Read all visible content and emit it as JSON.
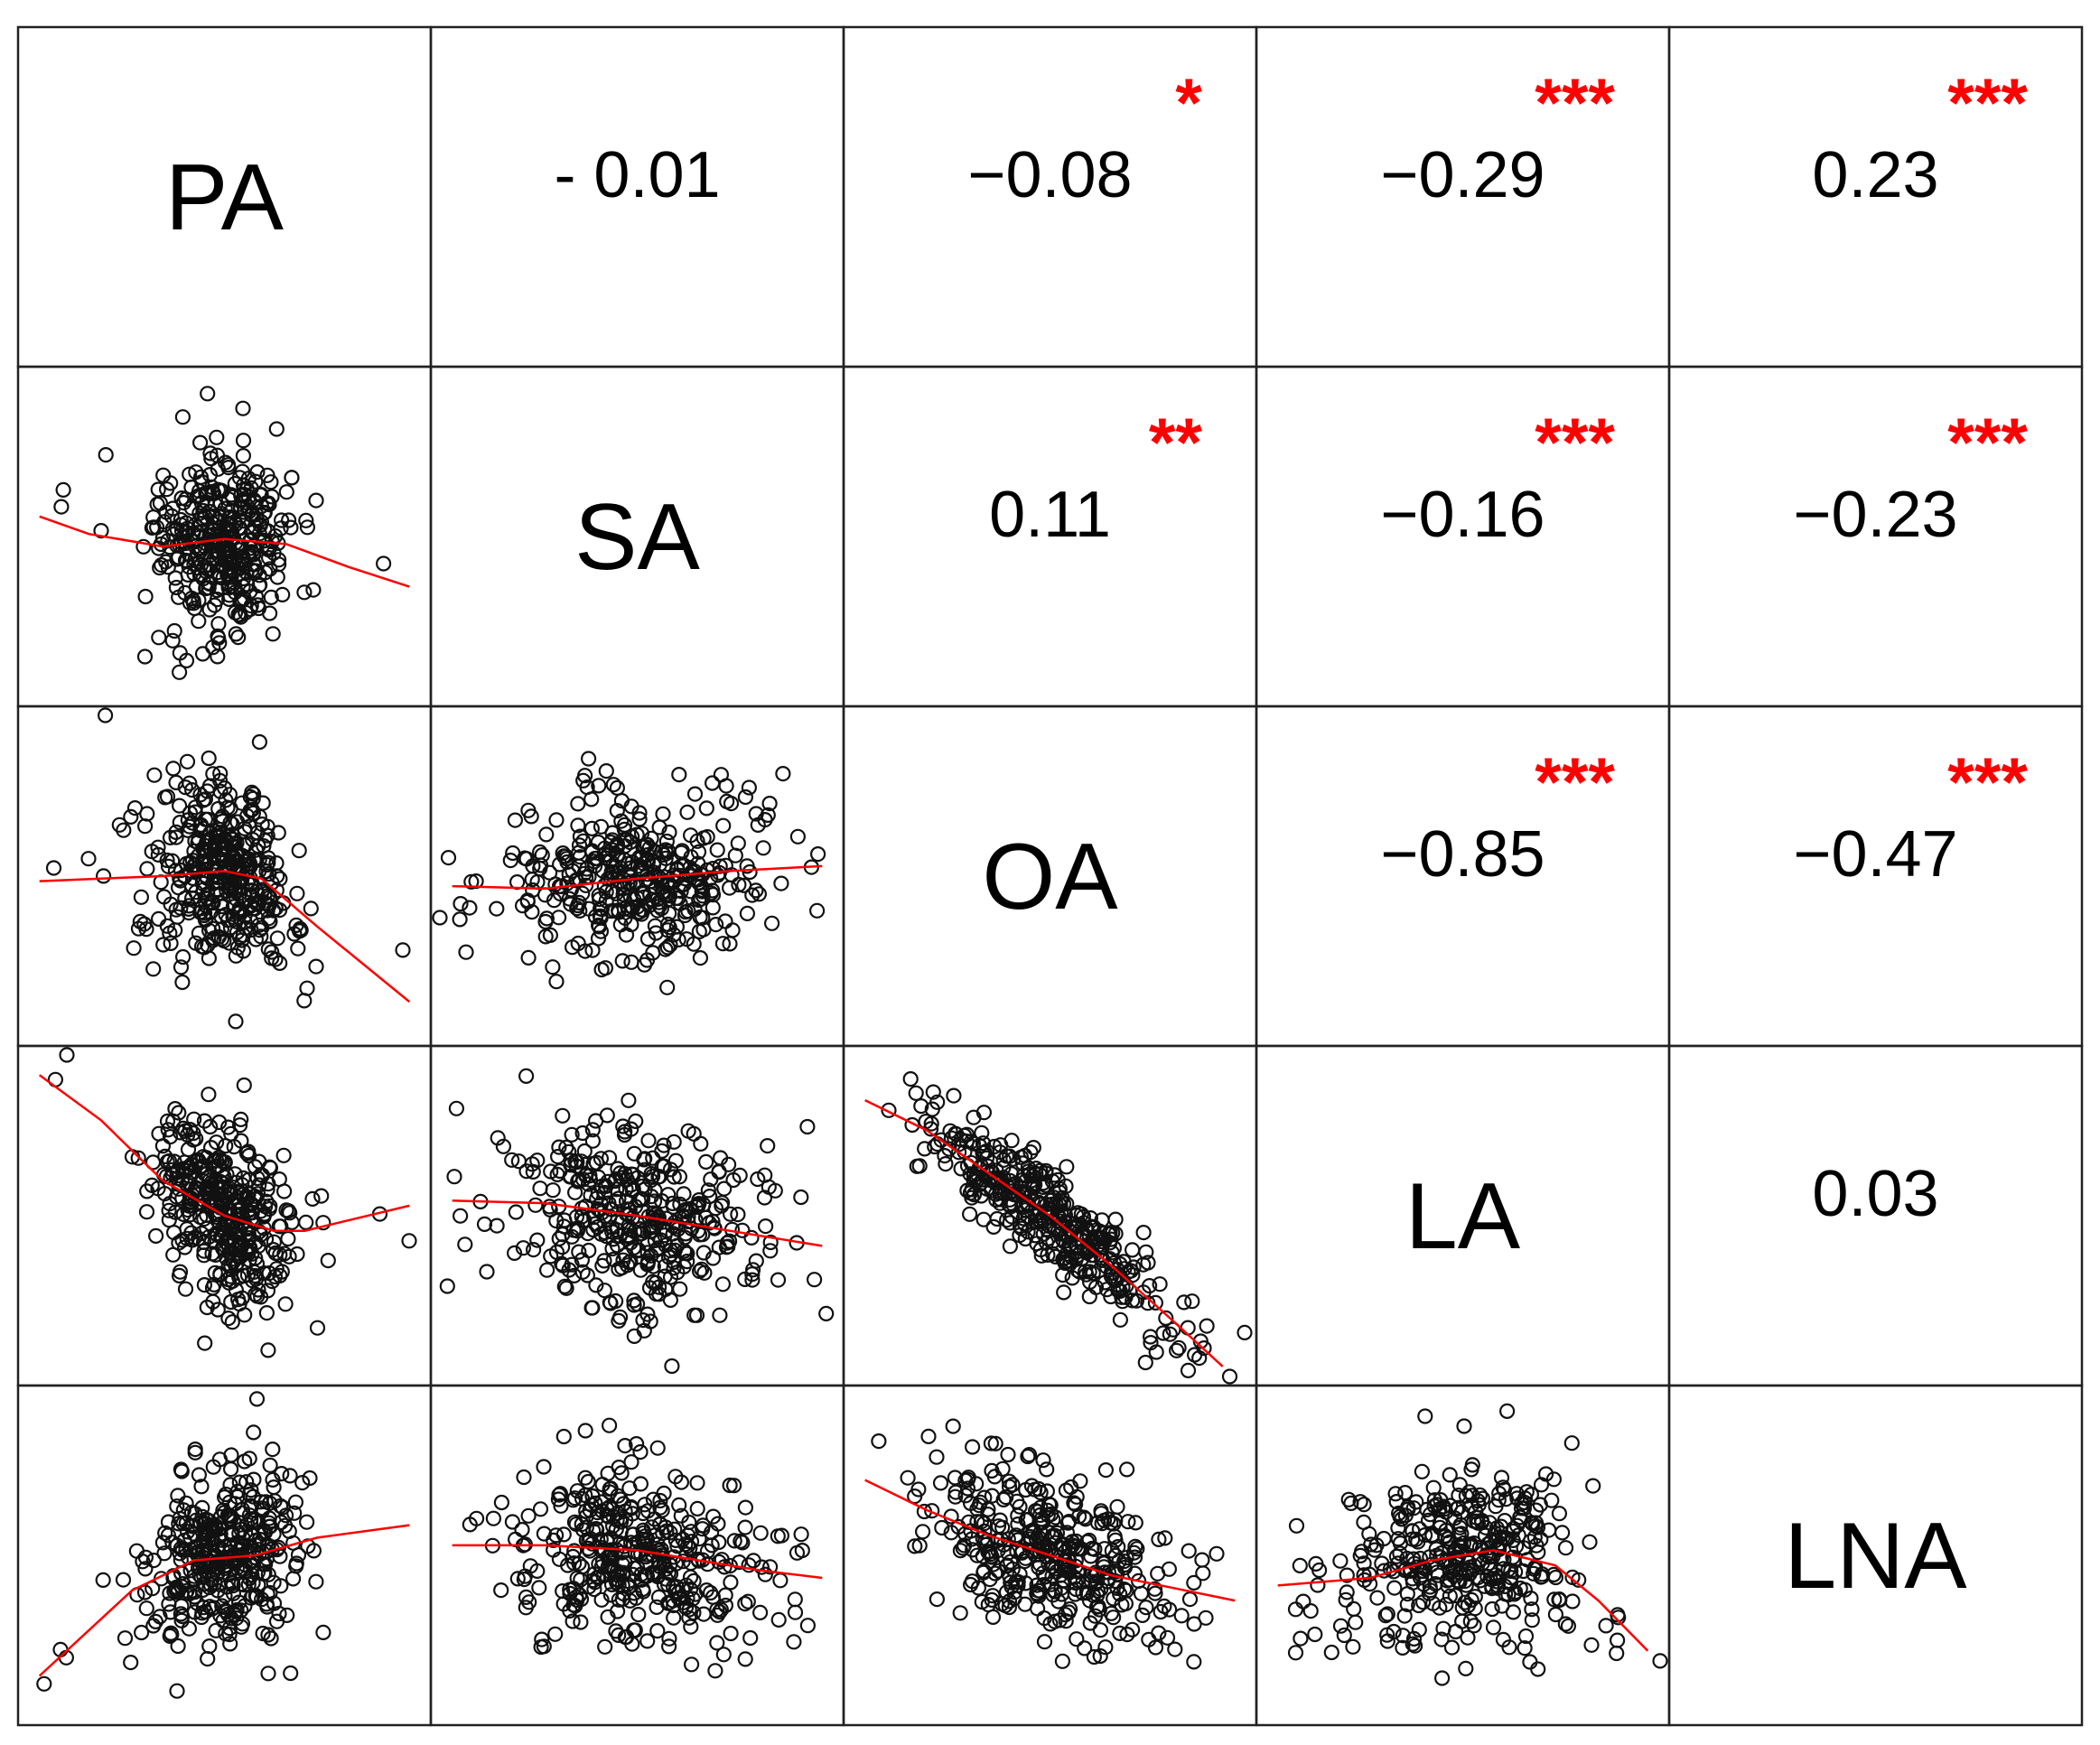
{
  "chart_data": {
    "type": "scatter-matrix",
    "variables": [
      "PA",
      "SA",
      "OA",
      "LA",
      "LNA"
    ],
    "correlations": [
      {
        "row": "PA",
        "col": "SA",
        "r": "- 0.01",
        "stars": ""
      },
      {
        "row": "PA",
        "col": "OA",
        "r": "−0.08",
        "stars": "*"
      },
      {
        "row": "PA",
        "col": "LA",
        "r": "−0.29",
        "stars": "***"
      },
      {
        "row": "PA",
        "col": "LNA",
        "r": "0.23",
        "stars": "***"
      },
      {
        "row": "SA",
        "col": "OA",
        "r": "0.11",
        "stars": "**"
      },
      {
        "row": "SA",
        "col": "LA",
        "r": "−0.16",
        "stars": "***"
      },
      {
        "row": "SA",
        "col": "LNA",
        "r": "−0.23",
        "stars": "***"
      },
      {
        "row": "OA",
        "col": "LA",
        "r": "−0.85",
        "stars": "***"
      },
      {
        "row": "OA",
        "col": "LNA",
        "r": "−0.47",
        "stars": "***"
      },
      {
        "row": "LA",
        "col": "LNA",
        "r": "0.03",
        "stars": ""
      }
    ],
    "scatter_panels": [
      {
        "y": "SA",
        "x": "PA",
        "r": -0.01,
        "smooth": [
          [
            -3.0,
            0.4
          ],
          [
            -2.2,
            0.05
          ],
          [
            -1.0,
            -0.2
          ],
          [
            0.0,
            -0.05
          ],
          [
            1.0,
            -0.15
          ],
          [
            2.0,
            -0.6
          ],
          [
            3.0,
            -1.0
          ]
        ]
      },
      {
        "y": "OA",
        "x": "PA",
        "r": -0.08,
        "smooth": [
          [
            -3.0,
            -0.1
          ],
          [
            -2.0,
            -0.05
          ],
          [
            -1.0,
            0.0
          ],
          [
            0.0,
            0.1
          ],
          [
            0.6,
            -0.05
          ],
          [
            1.5,
            -1.0
          ],
          [
            3.0,
            -2.5
          ]
        ]
      },
      {
        "y": "OA",
        "x": "SA",
        "r": 0.11,
        "smooth": [
          [
            -3.0,
            -0.2
          ],
          [
            -1.5,
            -0.25
          ],
          [
            0.0,
            -0.05
          ],
          [
            1.5,
            0.1
          ],
          [
            3.0,
            0.2
          ]
        ]
      },
      {
        "y": "LA",
        "x": "PA",
        "r": -0.29,
        "smooth": [
          [
            -3.0,
            2.8
          ],
          [
            -2.0,
            1.9
          ],
          [
            -1.0,
            0.7
          ],
          [
            0.0,
            0.0
          ],
          [
            0.8,
            -0.3
          ],
          [
            1.3,
            -0.3
          ],
          [
            3.0,
            0.2
          ]
        ]
      },
      {
        "y": "LA",
        "x": "SA",
        "r": -0.16,
        "smooth": [
          [
            -3.0,
            0.3
          ],
          [
            -1.5,
            0.25
          ],
          [
            0.0,
            0.0
          ],
          [
            1.5,
            -0.3
          ],
          [
            3.0,
            -0.6
          ]
        ]
      },
      {
        "y": "LA",
        "x": "OA",
        "r": -0.85,
        "smooth": [
          [
            -3.0,
            2.3
          ],
          [
            -2.0,
            1.7
          ],
          [
            -1.0,
            0.85
          ],
          [
            0.0,
            0.0
          ],
          [
            1.0,
            -1.0
          ],
          [
            2.0,
            -2.1
          ],
          [
            2.8,
            -3.0
          ]
        ]
      },
      {
        "y": "LNA",
        "x": "PA",
        "r": 0.23,
        "smooth": [
          [
            -3.0,
            -2.4
          ],
          [
            -1.5,
            -0.7
          ],
          [
            -0.5,
            -0.1
          ],
          [
            0.5,
            0.0
          ],
          [
            1.5,
            0.35
          ],
          [
            3.0,
            0.6
          ]
        ]
      },
      {
        "y": "LNA",
        "x": "SA",
        "r": -0.23,
        "smooth": [
          [
            -3.0,
            0.2
          ],
          [
            -1.5,
            0.2
          ],
          [
            0.0,
            0.1
          ],
          [
            1.0,
            -0.1
          ],
          [
            2.0,
            -0.3
          ],
          [
            3.0,
            -0.45
          ]
        ]
      },
      {
        "y": "LNA",
        "x": "OA",
        "r": -0.47,
        "smooth": [
          [
            -3.0,
            1.5
          ],
          [
            -2.0,
            0.9
          ],
          [
            -1.0,
            0.4
          ],
          [
            0.0,
            0.0
          ],
          [
            1.0,
            -0.4
          ],
          [
            2.0,
            -0.65
          ],
          [
            3.0,
            -0.9
          ]
        ]
      },
      {
        "y": "LNA",
        "x": "LA",
        "r": 0.03,
        "smooth": [
          [
            -3.0,
            -0.6
          ],
          [
            -1.5,
            -0.45
          ],
          [
            -0.5,
            -0.1
          ],
          [
            0.5,
            0.1
          ],
          [
            1.5,
            -0.2
          ],
          [
            2.2,
            -0.9
          ],
          [
            3.0,
            -1.9
          ]
        ]
      }
    ],
    "axis_range": [
      -3.2,
      3.2
    ],
    "points_per_panel": 380,
    "significance_legend": "",
    "colors": {
      "points": "#111111",
      "smooth": "#ff0000",
      "stars": "#ff0000",
      "border": "#222222"
    }
  }
}
